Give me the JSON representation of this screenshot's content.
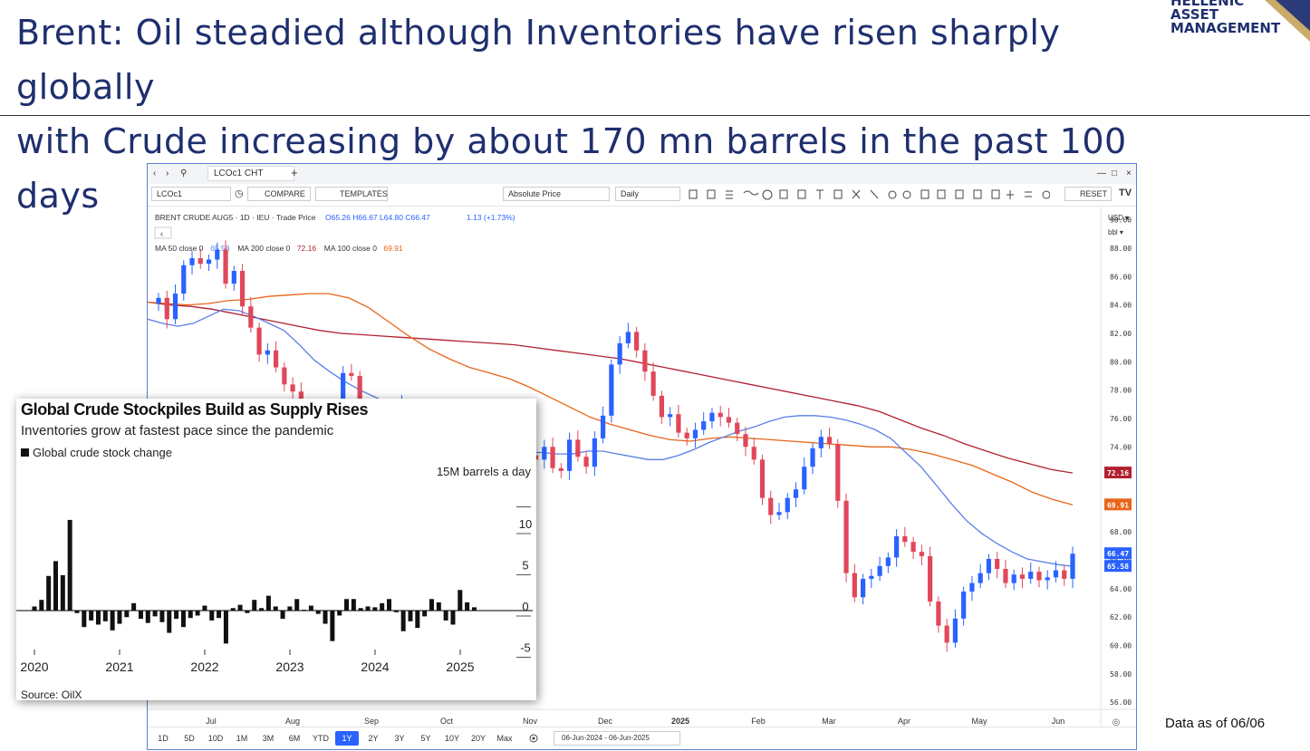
{
  "slide": {
    "title_line1": "Brent: Oil steadied although Inventories have risen sharply globally",
    "title_line2": "with Crude increasing by about 170 mn barrels in the past 100 days",
    "logo_line1": "HELLENIC",
    "logo_line2": "ASSET",
    "logo_line3": "MANAGEMENT",
    "footnote": "Data as of 06/06"
  },
  "platform": {
    "tab_label": "LCOc1 CHT",
    "symbol_input": "LCOc1",
    "compare_label": "COMPARE",
    "templates_label": "TEMPLATES",
    "price_mode": "Absolute Price",
    "interval": "Daily",
    "reset_label": "RESET",
    "currency": "USD",
    "unit": "bbl",
    "ranges": [
      "1D",
      "5D",
      "10D",
      "1M",
      "3M",
      "6M",
      "YTD",
      "1Y",
      "2Y",
      "3Y",
      "5Y",
      "10Y",
      "20Y",
      "Max"
    ],
    "active_range": "1Y",
    "date_range": "06-Jun-2024  -  06-Jun-2025",
    "accent_color": "#2962ff"
  },
  "chart_data": [
    {
      "type": "candlestick",
      "title": "BRENT CRUDE AUG5 · 1D · IEU · Trade Price",
      "ohlc_label": {
        "o_label": "O",
        "o": "65.26",
        "h_label": "H",
        "h": "66.67",
        "l_label": "L",
        "l": "64.80",
        "c_label": "C",
        "c": "66.47",
        "change": "1.13 (+1.73%)"
      },
      "ma_legend": [
        {
          "label": "MA 50 close 0",
          "value": "65.58",
          "color": "#5b7fe8"
        },
        {
          "label": "MA 200 close 0",
          "value": "72.16",
          "color": "#b0202e"
        },
        {
          "label": "MA 100 close 0",
          "value": "69.91",
          "color": "#e8651a"
        }
      ],
      "yticks": [
        "90.00",
        "88.00",
        "86.00",
        "84.00",
        "82.00",
        "80.00",
        "78.00",
        "76.00",
        "74.00",
        "72.00",
        "70.00",
        "68.00",
        "66.00",
        "64.00",
        "62.00",
        "60.00",
        "58.00",
        "56.00"
      ],
      "ylim": [
        55.5,
        91
      ],
      "xticks": [
        {
          "label": "Jul",
          "bold": false
        },
        {
          "label": "Aug",
          "bold": false
        },
        {
          "label": "Sep",
          "bold": false
        },
        {
          "label": "Oct",
          "bold": false
        },
        {
          "label": "Nov",
          "bold": false
        },
        {
          "label": "Dec",
          "bold": false
        },
        {
          "label": "2025",
          "bold": true
        },
        {
          "label": "Feb",
          "bold": false
        },
        {
          "label": "Mar",
          "bold": false
        },
        {
          "label": "Apr",
          "bold": false
        },
        {
          "label": "May",
          "bold": false
        },
        {
          "label": "Jun",
          "bold": false
        }
      ],
      "price_badges": [
        {
          "label": "72.16",
          "value": 72.16,
          "color": "#b0202e"
        },
        {
          "label": "69.91",
          "value": 69.91,
          "color": "#e8651a"
        },
        {
          "label": "66.47",
          "value": 66.47,
          "color": "#2962ff"
        },
        {
          "label": "65.58",
          "value": 65.58,
          "color": "#2962ff"
        }
      ],
      "up_color": "#2962ff",
      "down_color": "#e0475a",
      "close_path": [
        84.5,
        83,
        84.8,
        86.8,
        87.3,
        86.9,
        87.2,
        87.9,
        85.5,
        86.4,
        83.9,
        82.4,
        80.5,
        80.8,
        79.6,
        78.4,
        77.9,
        76.1,
        74.2,
        73.3,
        73,
        75.1,
        79.2,
        79,
        76.4,
        73.8,
        75.3,
        76,
        75.4,
        77,
        74.5,
        73.5,
        75,
        72.5,
        72.2,
        71.4,
        73.3,
        73.7,
        73.3,
        73.7,
        72.9,
        72.4,
        72.9,
        72.7,
        73.4,
        73.1,
        74,
        72.5,
        72.3,
        74.5,
        73.3,
        72.6,
        74.6,
        76.2,
        79.8,
        81.3,
        82.1,
        80.8,
        79.3,
        77.6,
        76.1,
        76.3,
        75,
        74.6,
        75.2,
        75.8,
        76.4,
        76.1,
        75.7,
        74.9,
        74,
        73.1,
        70.4,
        69.2,
        69.4,
        70.4,
        71,
        72.6,
        73.9,
        74.7,
        74.2,
        70.2,
        65.1,
        63.4,
        64.7,
        64.9,
        65.6,
        66.2,
        67.7,
        67.3,
        66.6,
        66.3,
        63.1,
        61.4,
        60.2,
        61.9,
        63.8,
        64.4,
        65.1,
        66.1,
        65.4,
        64.4,
        65,
        64.7,
        65.2,
        64.6,
        64.8,
        65.3,
        64.7,
        66.47
      ],
      "ma50_path": [
        83,
        82.7,
        82.5,
        82.7,
        83.2,
        83.7,
        83.6,
        83.2,
        82.7,
        82.2,
        81.2,
        80.1,
        79.3,
        78.6,
        78,
        77.5,
        77,
        76.4,
        75.8,
        75.2,
        74.7,
        74.2,
        74,
        73.8,
        73.6,
        73.6,
        73.6,
        73.5,
        73.5,
        73.7,
        73.7,
        73.5,
        73.3,
        73.1,
        73.1,
        73.4,
        73.8,
        74.3,
        74.7,
        75.1,
        75.4,
        75.8,
        76.1,
        76.2,
        76.2,
        76.1,
        75.9,
        75.6,
        75.2,
        74.6,
        73.6,
        72.6,
        71.3,
        70,
        68.8,
        67.9,
        67.2,
        66.6,
        66.1,
        65.9,
        65.7,
        65.58
      ],
      "ma100_path": [
        84.2,
        84.1,
        84,
        84.1,
        84.3,
        84.4,
        84.6,
        84.7,
        84.8,
        84.8,
        84.5,
        83.8,
        82.8,
        81.8,
        80.9,
        80.2,
        79.6,
        79.2,
        78.8,
        78.2,
        77.5,
        76.8,
        76.1,
        75.6,
        75.2,
        74.8,
        74.5,
        74.4,
        74.6,
        74.7,
        74.6,
        74.5,
        74.4,
        74.3,
        74.2,
        74.1,
        74,
        74,
        73.8,
        73.5,
        73.1,
        72.7,
        72.1,
        71.5,
        70.8,
        70.3,
        69.91
      ],
      "ma200_path": [
        84.2,
        84,
        83.9,
        83.7,
        83.4,
        83.1,
        82.8,
        82.5,
        82.2,
        82,
        81.9,
        81.8,
        81.7,
        81.6,
        81.5,
        81.4,
        81.3,
        81.2,
        81,
        80.8,
        80.6,
        80.4,
        80.2,
        79.9,
        79.6,
        79.3,
        79,
        78.7,
        78.4,
        78.1,
        77.8,
        77.5,
        77.2,
        76.9,
        76.5,
        75.9,
        75.3,
        74.8,
        74.2,
        73.7,
        73.2,
        72.8,
        72.4,
        72.16
      ]
    },
    {
      "type": "bar",
      "title": "Global Crude Stockpiles Build as Supply Rises",
      "subtitle": "Inventories grow at fastest pace since the pandemic",
      "series_name": "Global crude stock change",
      "unit_label": "15M barrels a day",
      "yticks": [
        "10",
        "5",
        "0",
        "-5"
      ],
      "ylim": [
        -6.5,
        15
      ],
      "xticks": [
        "2020",
        "2021",
        "2022",
        "2023",
        "2024",
        "2025"
      ],
      "source": "Source: OilX",
      "x_start": 2020.0,
      "step": 0.0833,
      "values": [
        0.5,
        1.3,
        4.2,
        6,
        4.3,
        11,
        -0.3,
        -2,
        -1.2,
        -1.7,
        -1.3,
        -2.4,
        -1.6,
        -0.8,
        0.9,
        -1,
        -1.5,
        -0.7,
        -1.4,
        -2.7,
        -1,
        -2,
        -0.9,
        -0.6,
        0.6,
        -1.2,
        -0.9,
        -4,
        0.3,
        0.7,
        -0.3,
        1.3,
        0.3,
        1.8,
        0.5,
        -1,
        0.5,
        1.4,
        0.1,
        0.6,
        -0.4,
        -1.6,
        -3.7,
        -0.6,
        1.4,
        1.4,
        0.3,
        0.5,
        0.4,
        0.9,
        1.4,
        -0.2,
        -2.5,
        -1.3,
        -2.1,
        -0.7,
        1.4,
        1,
        -1.2,
        -1.7,
        2.5,
        1,
        0.4
      ]
    }
  ]
}
